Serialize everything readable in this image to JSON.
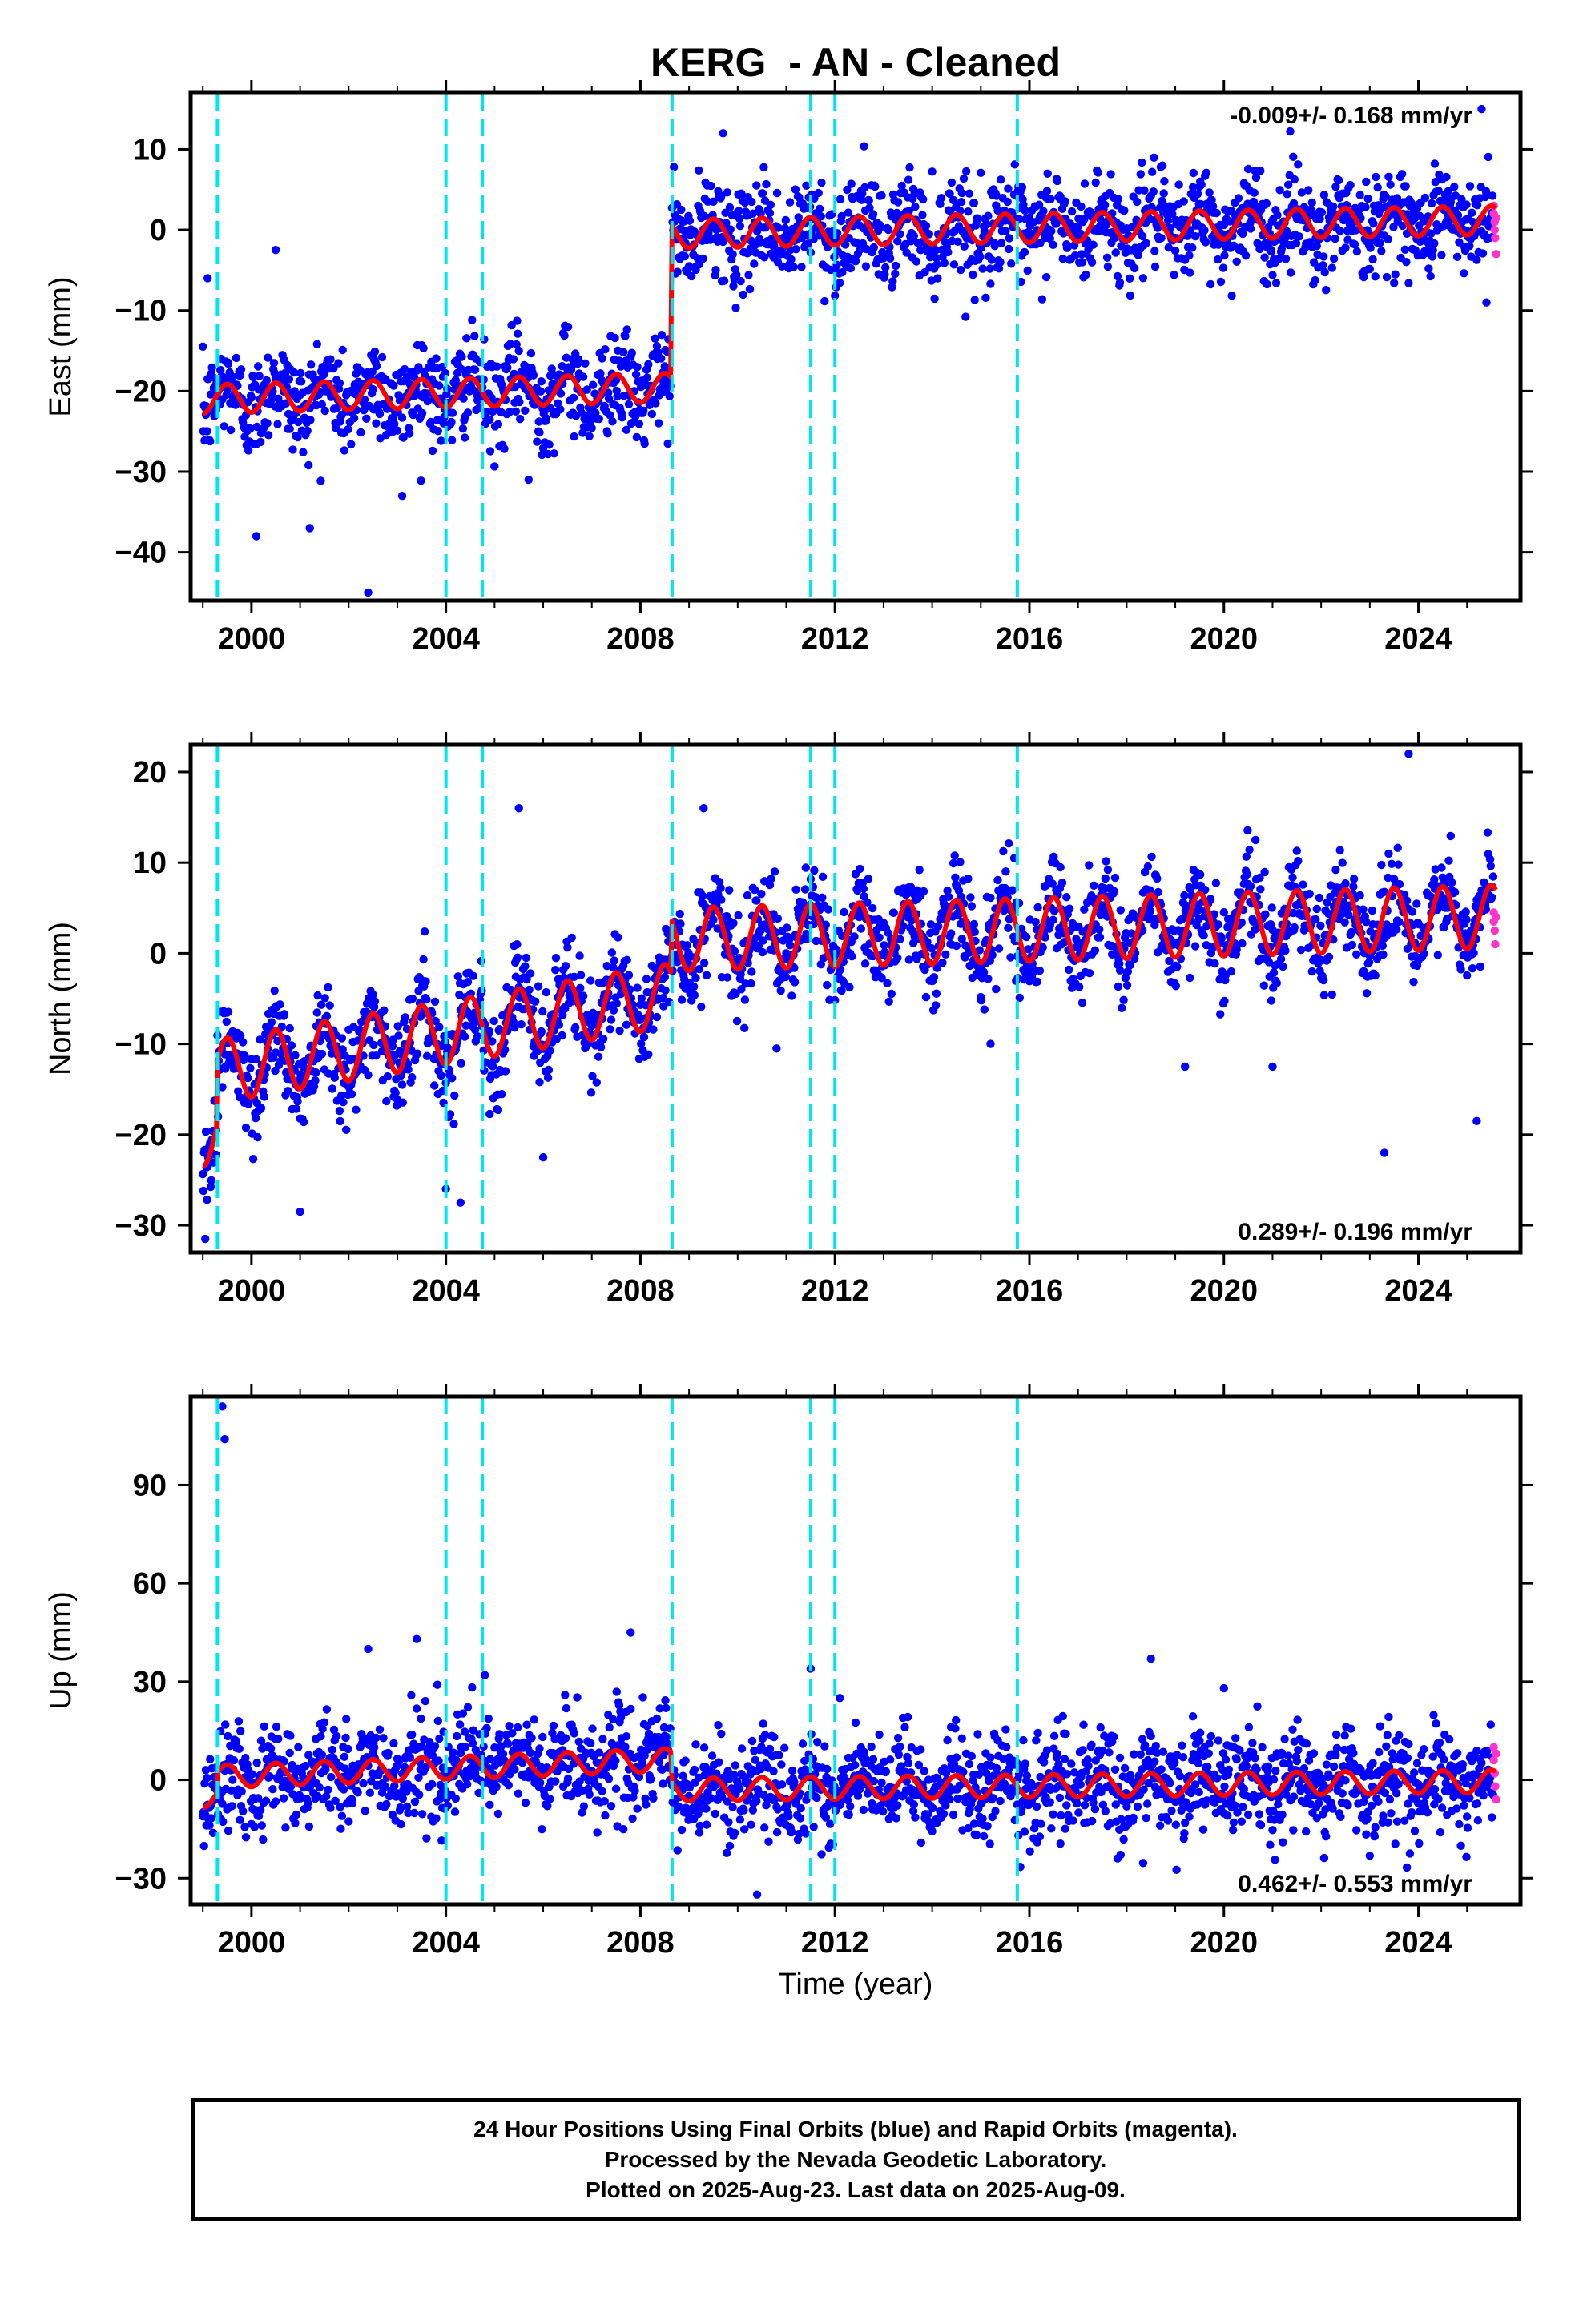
{
  "title": "KERG  - AN - Cleaned",
  "xlabel": "Time (year)",
  "footer": {
    "line1": "24 Hour Positions Using Final Orbits (blue) and Rapid Orbits (magenta).",
    "line2": "Processed by the Nevada Geodetic Laboratory.",
    "line3": "Plotted on 2025-Aug-23. Last data on 2025-Aug-09."
  },
  "colors": {
    "final_orbits": "#0000ff",
    "rapid_orbits": "#ff33cc",
    "model": "#ff0000",
    "events": "#00e5ee"
  },
  "chart_data": [
    {
      "type": "scatter",
      "component": "east",
      "ylabel": "East (mm)",
      "rate_text": "-0.009+/- 0.168 mm/yr",
      "xlim": [
        1998.75,
        2026.1
      ],
      "ylim": [
        -46,
        17
      ],
      "xticks": [
        2000,
        2004,
        2008,
        2012,
        2016,
        2020,
        2024
      ],
      "yticks": [
        10,
        0,
        -10,
        -20,
        -30,
        -40
      ],
      "event_lines": [
        1999.3,
        2004.0,
        2004.75,
        2008.65,
        2011.5,
        2012.0,
        2015.75
      ],
      "model": {
        "annual_amplitude": 1.8,
        "segments": [
          {
            "start": 1999.0,
            "end": 2008.62,
            "offset_at_start": -21.0,
            "rate": 0.15
          },
          {
            "start": 2008.65,
            "end": 2025.6,
            "offset_at_start": -0.5,
            "rate": 0.1
          }
        ]
      },
      "scatter_std": 3.0,
      "outliers": [
        [
          1999.1,
          -6
        ],
        [
          2000.5,
          -2.5
        ],
        [
          2002.4,
          -45
        ],
        [
          2000.1,
          -38
        ],
        [
          2001.2,
          -37
        ],
        [
          2009.7,
          12
        ],
        [
          2025.3,
          15
        ],
        [
          2025.4,
          -9
        ],
        [
          2003.1,
          -33
        ],
        [
          2005.7,
          -31
        ]
      ],
      "rapid_points": [
        [
          2025.55,
          3
        ],
        [
          2025.55,
          2
        ],
        [
          2025.57,
          1
        ],
        [
          2025.57,
          0
        ],
        [
          2025.58,
          -1
        ],
        [
          2025.6,
          -3
        ],
        [
          2025.6,
          1.5
        ]
      ]
    },
    {
      "type": "scatter",
      "component": "north",
      "ylabel": "North (mm)",
      "rate_text": "0.289+/- 0.196 mm/yr",
      "xlim": [
        1998.75,
        2026.1
      ],
      "ylim": [
        -33,
        23
      ],
      "xticks": [
        2000,
        2004,
        2008,
        2012,
        2016,
        2020,
        2024
      ],
      "yticks": [
        20,
        10,
        0,
        -10,
        -20,
        -30
      ],
      "event_lines": [
        1999.3,
        2004.0,
        2004.75,
        2008.65,
        2011.5,
        2012.0,
        2015.75
      ],
      "model": {
        "annual_amplitude": 3.5,
        "segments": [
          {
            "start": 1999.0,
            "end": 1999.28,
            "offset_at_start": -20.0,
            "rate": 0.0
          },
          {
            "start": 1999.3,
            "end": 2008.62,
            "offset_at_start": -13.0,
            "rate": 0.9
          },
          {
            "start": 2008.65,
            "end": 2025.6,
            "offset_at_start": 1.5,
            "rate": 0.15
          }
        ]
      },
      "scatter_std": 2.6,
      "outliers": [
        [
          1999.05,
          -31.5
        ],
        [
          2001.0,
          -28.5
        ],
        [
          2004.0,
          -26
        ],
        [
          2004.3,
          -27.5
        ],
        [
          2005.5,
          16
        ],
        [
          2023.3,
          -22
        ],
        [
          2023.8,
          22
        ],
        [
          2025.2,
          -18.5
        ],
        [
          2010.8,
          -10.5
        ],
        [
          2015.2,
          -10
        ],
        [
          2019.2,
          -12.5
        ],
        [
          2021.0,
          -12.5
        ],
        [
          2009.3,
          16
        ],
        [
          2006.0,
          -22.5
        ]
      ],
      "rapid_points": [
        [
          2025.55,
          4.5
        ],
        [
          2025.55,
          3.5
        ],
        [
          2025.57,
          2.5
        ],
        [
          2025.58,
          1
        ],
        [
          2025.6,
          4
        ]
      ]
    },
    {
      "type": "scatter",
      "component": "up",
      "ylabel": "Up (mm)",
      "rate_text": "0.462+/- 0.553 mm/yr",
      "xlim": [
        1998.75,
        2026.1
      ],
      "ylim": [
        -38,
        117
      ],
      "xticks": [
        2000,
        2004,
        2008,
        2012,
        2016,
        2020,
        2024
      ],
      "yticks": [
        90,
        60,
        30,
        0,
        -30
      ],
      "event_lines": [
        1999.3,
        2004.0,
        2004.75,
        2008.65,
        2011.5,
        2012.0,
        2015.75
      ],
      "model": {
        "annual_amplitude": 3.5,
        "segments": [
          {
            "start": 1999.0,
            "end": 1999.28,
            "offset_at_start": -5.0,
            "rate": 0.0
          },
          {
            "start": 1999.3,
            "end": 2008.62,
            "offset_at_start": 1.0,
            "rate": 0.55
          },
          {
            "start": 2008.65,
            "end": 2025.6,
            "offset_at_start": -3.0,
            "rate": 0.15
          }
        ]
      },
      "scatter_std": 7.5,
      "outliers": [
        [
          1999.4,
          114
        ],
        [
          1999.45,
          104
        ],
        [
          2003.4,
          43
        ],
        [
          2002.4,
          40
        ],
        [
          2007.8,
          45
        ],
        [
          2011.5,
          34
        ],
        [
          2010.4,
          -35
        ],
        [
          2018.5,
          37
        ],
        [
          2012.1,
          25
        ],
        [
          2020.0,
          28
        ],
        [
          2004.8,
          32
        ]
      ],
      "rapid_points": [
        [
          2025.55,
          10
        ],
        [
          2025.55,
          6
        ],
        [
          2025.57,
          2
        ],
        [
          2025.58,
          -2
        ],
        [
          2025.6,
          -6
        ],
        [
          2025.6,
          8
        ]
      ]
    }
  ]
}
